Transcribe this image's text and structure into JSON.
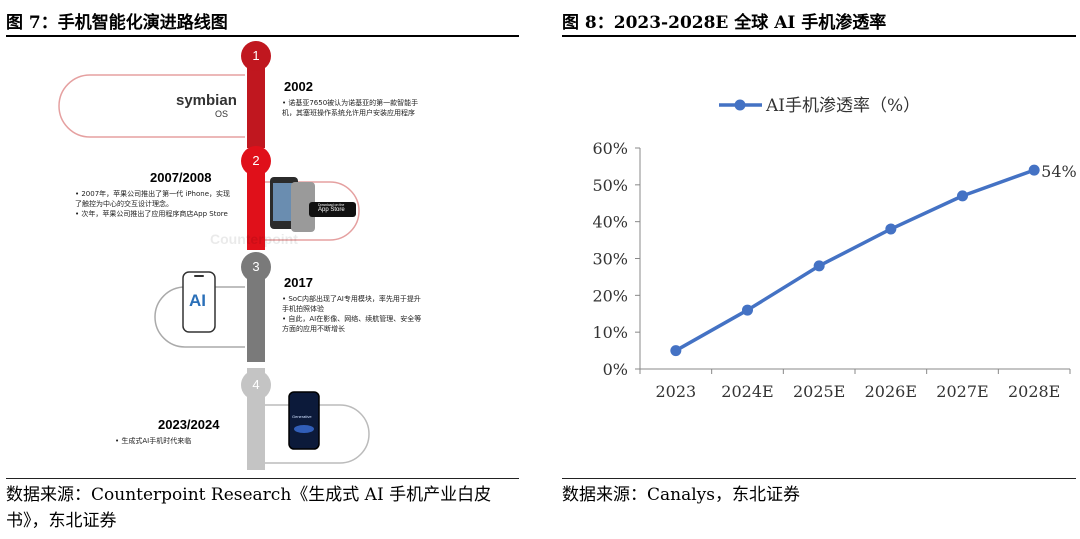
{
  "left_figure": {
    "title": "图 7：手机智能化演进路线图",
    "source": "数据来源：Counterpoint Research《生成式 AI 手机产业白皮书》，东北证券",
    "stages": [
      {
        "number": "1",
        "year": "2002",
        "logo_text": "symbian",
        "logo_sub": "OS",
        "bullets": [
          "• 诺基亚7650被认为诺基亚的第一款智能手",
          "  机，其塞班操作系统允许用户安装应用程序"
        ]
      },
      {
        "number": "2",
        "year": "2007/2008",
        "store_label_small": "Download on the",
        "store_label": "App Store",
        "bullets": [
          "• 2007年，苹果公司推出了第一代 iPhone，实现",
          "  了触控为中心的交互设计理念。",
          "• 次年，苹果公司推出了应用程序商店App Store"
        ]
      },
      {
        "number": "3",
        "year": "2017",
        "icon_text": "AI",
        "bullets": [
          "• SoC内部出现了AI专用模块，率先用于提升",
          "  手机拍照体验",
          "• 自此，AI在影像、网络、续航管理、安全等",
          "  方面的应用不断增长"
        ]
      },
      {
        "number": "4",
        "year": "2023/2024",
        "screen_text": "Generative",
        "bullets": [
          "• 生成式AI手机时代来临"
        ]
      }
    ],
    "watermark": "Counterpoint"
  },
  "right_figure": {
    "title": "图 8：2023-2028E 全球 AI 手机渗透率",
    "source": "数据来源：Canalys，东北证券",
    "chart_data": {
      "type": "line",
      "legend_position": "top",
      "series": [
        {
          "name": "AI手机渗透率（%）",
          "values": [
            5,
            16,
            28,
            38,
            47,
            54
          ],
          "color": "#4472C4"
        }
      ],
      "categories": [
        "2023",
        "2024E",
        "2025E",
        "2026E",
        "2027E",
        "2028E"
      ],
      "y_ticks": [
        "0%",
        "10%",
        "20%",
        "30%",
        "40%",
        "50%",
        "60%"
      ],
      "ylim": [
        0,
        60
      ],
      "data_labels": [
        {
          "index": 5,
          "text": "54%"
        }
      ],
      "grid": false
    }
  }
}
